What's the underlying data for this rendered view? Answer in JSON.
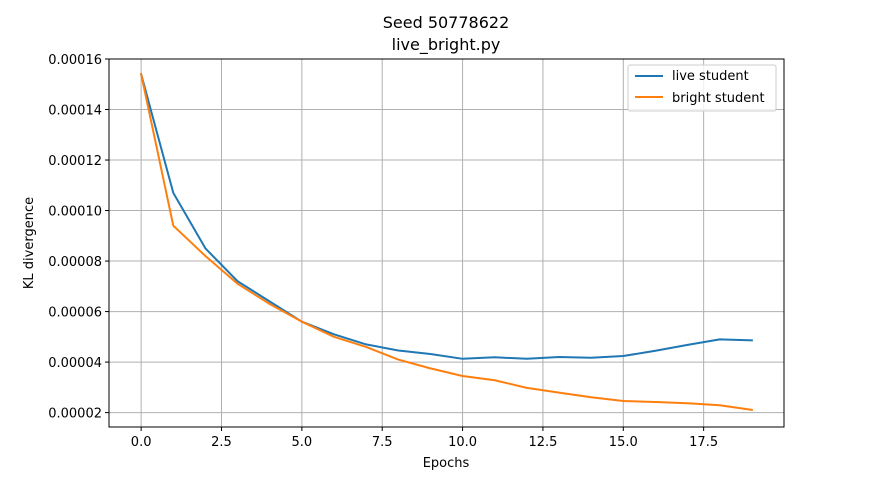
{
  "chart_data": {
    "type": "line",
    "title": "Seed 50778622",
    "subtitle": "live_bright.py",
    "xlabel": "Epochs",
    "ylabel": "KL divergence",
    "xlim": [
      -1.0,
      20.0
    ],
    "ylim": [
      1.43e-05,
      0.00016
    ],
    "x_ticks": [
      0,
      2.5,
      5,
      7.5,
      10,
      12.5,
      15,
      17.5
    ],
    "x_tick_labels": [
      "0.0",
      "2.5",
      "5.0",
      "7.5",
      "10.0",
      "12.5",
      "15.0",
      "17.5"
    ],
    "y_ticks": [
      2e-05,
      4e-05,
      6e-05,
      8e-05,
      0.0001,
      0.00012,
      0.00014,
      0.00016
    ],
    "y_tick_labels": [
      "0.00002",
      "0.00004",
      "0.00006",
      "0.00008",
      "0.00010",
      "0.00012",
      "0.00014",
      "0.00016"
    ],
    "grid": true,
    "legend_position": "top-right",
    "x": [
      0,
      1,
      2,
      3,
      4,
      5,
      6,
      7,
      8,
      9,
      10,
      11,
      12,
      13,
      14,
      15,
      16,
      17,
      18,
      19
    ],
    "series": [
      {
        "name": "live student",
        "color": "#1f77b4",
        "values": [
          0.000154,
          0.000107,
          8.5e-05,
          7.2e-05,
          6.4e-05,
          5.6e-05,
          5.1e-05,
          4.7e-05,
          4.46e-05,
          4.32e-05,
          4.13e-05,
          4.19e-05,
          4.13e-05,
          4.2e-05,
          4.17e-05,
          4.24e-05,
          4.45e-05,
          4.68e-05,
          4.9e-05,
          4.86e-05
        ]
      },
      {
        "name": "bright student",
        "color": "#ff7f0e",
        "values": [
          0.000154,
          9.4e-05,
          8.2e-05,
          7.1e-05,
          6.3e-05,
          5.6e-05,
          5e-05,
          4.6e-05,
          4.1e-05,
          3.75e-05,
          3.45e-05,
          3.28e-05,
          2.98e-05,
          2.79e-05,
          2.61e-05,
          2.46e-05,
          2.42e-05,
          2.37e-05,
          2.29e-05,
          2.11e-05
        ]
      }
    ]
  }
}
